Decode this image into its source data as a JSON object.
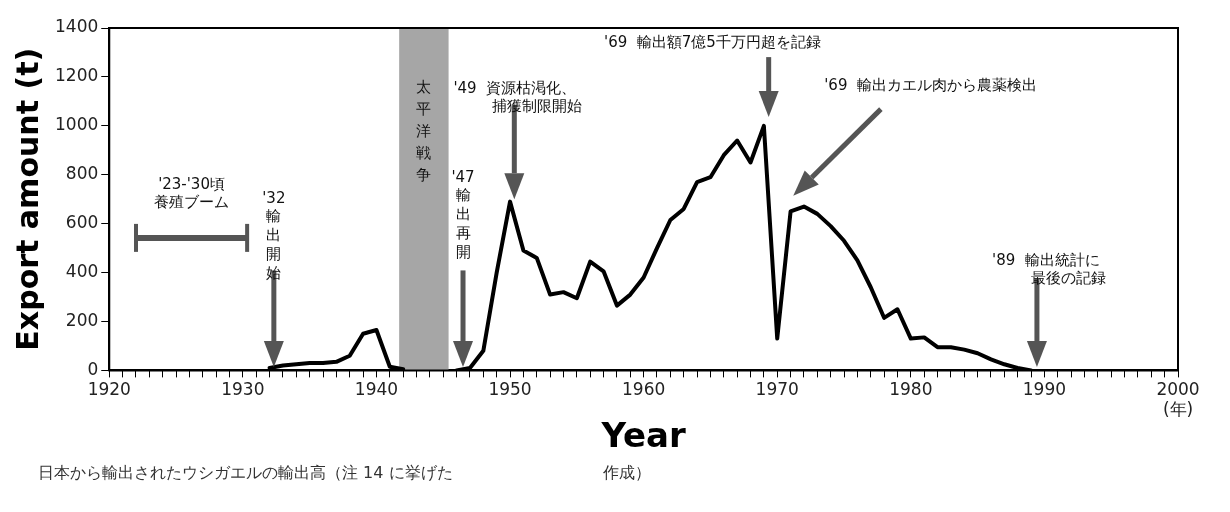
{
  "chart_data": {
    "type": "line",
    "xlabel": "Year",
    "ylabel": "Export amount (t)",
    "x": [
      1932,
      1933,
      1934,
      1935,
      1936,
      1937,
      1938,
      1939,
      1940,
      1941,
      1942,
      1943,
      1944,
      1945,
      1946,
      1947,
      1948,
      1949,
      1950,
      1951,
      1952,
      1953,
      1954,
      1955,
      1956,
      1957,
      1958,
      1959,
      1960,
      1961,
      1962,
      1963,
      1964,
      1965,
      1966,
      1967,
      1968,
      1969,
      1970,
      1971,
      1972,
      1973,
      1974,
      1975,
      1976,
      1977,
      1978,
      1979,
      1980,
      1981,
      1982,
      1983,
      1984,
      1985,
      1986,
      1987,
      1988,
      1989
    ],
    "series": [
      {
        "color": "#000000",
        "values": [
          10,
          20,
          25,
          30,
          30,
          35,
          60,
          150,
          165,
          15,
          5,
          null,
          null,
          null,
          0,
          10,
          80,
          400,
          690,
          490,
          460,
          310,
          320,
          295,
          445,
          405,
          265,
          310,
          380,
          500,
          615,
          660,
          770,
          790,
          880,
          940,
          850,
          1000,
          130,
          650,
          670,
          640,
          590,
          530,
          450,
          340,
          215,
          250,
          130,
          135,
          95,
          95,
          85,
          70,
          45,
          25,
          10,
          0
        ]
      }
    ],
    "xlim": [
      1920,
      2000
    ],
    "xticks": [
      1920,
      {
        "value": 1921,
        "label": null
      },
      {
        "value": 1922,
        "label": null
      },
      {
        "value": 1923,
        "label": null
      },
      {
        "value": 1924,
        "label": null
      },
      {
        "value": 1925,
        "label": null
      },
      {
        "value": 1926,
        "label": null
      },
      {
        "value": 1927,
        "label": null
      },
      {
        "value": 1928,
        "label": null
      },
      {
        "value": 1929,
        "label": null
      },
      1930,
      {
        "value": 1931,
        "label": null
      },
      {
        "value": 1932,
        "label": null
      },
      {
        "value": 1933,
        "label": null
      },
      {
        "value": 1934,
        "label": null
      },
      {
        "value": 1935,
        "label": null
      },
      {
        "value": 1936,
        "label": null
      },
      {
        "value": 1937,
        "label": null
      },
      {
        "value": 1938,
        "label": null
      },
      {
        "value": 1939,
        "label": null
      },
      1940,
      {
        "value": 1941,
        "label": null
      },
      {
        "value": 1942,
        "label": null
      },
      {
        "value": 1943,
        "label": null
      },
      {
        "value": 1944,
        "label": null
      },
      {
        "value": 1945,
        "label": null
      },
      {
        "value": 1946,
        "label": null
      },
      {
        "value": 1947,
        "label": null
      },
      {
        "value": 1948,
        "label": null
      },
      {
        "value": 1949,
        "label": null
      },
      1950,
      {
        "value": 1951,
        "label": null
      },
      {
        "value": 1952,
        "label": null
      },
      {
        "value": 1953,
        "label": null
      },
      {
        "value": 1954,
        "label": null
      },
      {
        "value": 1955,
        "label": null
      },
      {
        "value": 1956,
        "label": null
      },
      {
        "value": 1957,
        "label": null
      },
      {
        "value": 1958,
        "label": null
      },
      {
        "value": 1959,
        "label": null
      },
      1960,
      {
        "value": 1961,
        "label": null
      },
      {
        "value": 1962,
        "label": null
      },
      {
        "value": 1963,
        "label": null
      },
      {
        "value": 1964,
        "label": null
      },
      {
        "value": 1965,
        "label": null
      },
      {
        "value": 1966,
        "label": null
      },
      {
        "value": 1967,
        "label": null
      },
      {
        "value": 1968,
        "label": null
      },
      {
        "value": 1969,
        "label": null
      },
      1970,
      {
        "value": 1971,
        "label": null
      },
      {
        "value": 1972,
        "label": null
      },
      {
        "value": 1973,
        "label": null
      },
      {
        "value": 1974,
        "label": null
      },
      {
        "value": 1975,
        "label": null
      },
      {
        "value": 1976,
        "label": null
      },
      {
        "value": 1977,
        "label": null
      },
      {
        "value": 1978,
        "label": null
      },
      {
        "value": 1979,
        "label": null
      },
      1980,
      {
        "value": 1981,
        "label": null
      },
      {
        "value": 1982,
        "label": null
      },
      {
        "value": 1983,
        "label": null
      },
      {
        "value": 1984,
        "label": null
      },
      {
        "value": 1985,
        "label": null
      },
      {
        "value": 1986,
        "label": null
      },
      {
        "value": 1987,
        "label": null
      },
      {
        "value": 1988,
        "label": null
      },
      {
        "value": 1989,
        "label": null
      },
      1990,
      {
        "value": 1991,
        "label": null
      },
      {
        "value": 1992,
        "label": null
      },
      {
        "value": 1993,
        "label": null
      },
      {
        "value": 1994,
        "label": null
      },
      {
        "value": 1995,
        "label": null
      },
      {
        "value": 1996,
        "label": null
      },
      {
        "value": 1997,
        "label": null
      },
      {
        "value": 1998,
        "label": null
      },
      {
        "value": 1999,
        "label": null
      },
      {
        "value": 2000,
        "label": "2000\n(年)"
      }
    ],
    "ylim": [
      0,
      1400
    ],
    "yticks": [
      0,
      200,
      400,
      600,
      800,
      1000,
      1200,
      1400
    ],
    "grid": false,
    "legend": false,
    "marker": "none",
    "line_style": "solid",
    "bands": [
      {
        "axis": "x",
        "from": 1941.7,
        "to": 1945.4,
        "label": "太平洋戦争",
        "color": "#a6a6a6"
      }
    ],
    "annotations": [
      "'23-'30頃養殖ブーム",
      "'32\n輸出開始",
      "'47\n輸出再開",
      "'49  資源枯渇化、捕獲制限開始",
      "'69  輸出額7億5千万円超を記録",
      "'69  輸出カエル肉から農薬検出",
      "'89  輸出統計に最後の記録",
      "日本から輸出されたウシガエルの輸出高（注 14 に挙げた",
      "作成）"
    ]
  }
}
